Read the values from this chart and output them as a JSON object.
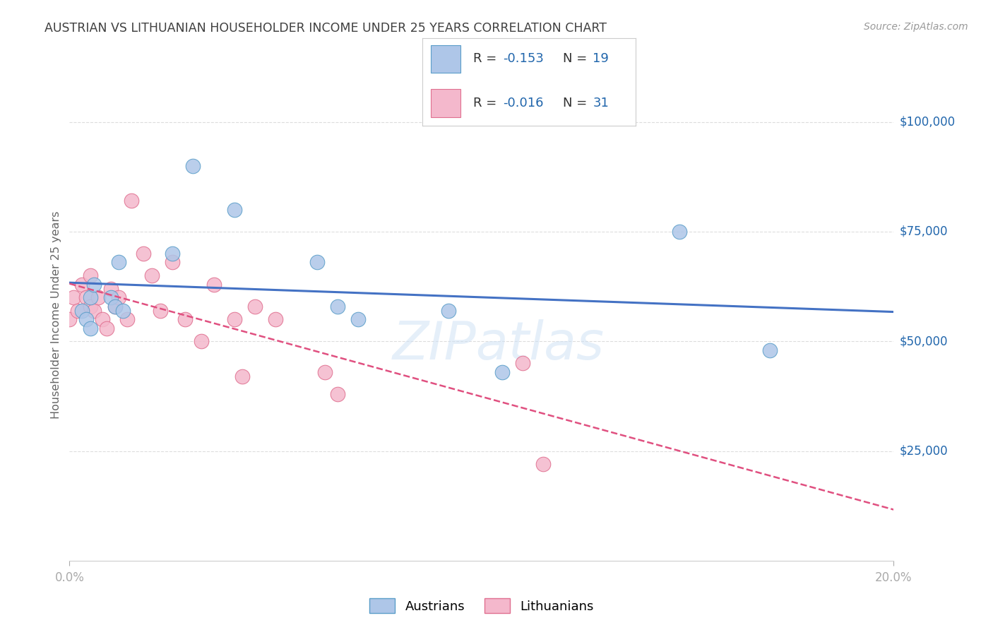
{
  "title": "AUSTRIAN VS LITHUANIAN HOUSEHOLDER INCOME UNDER 25 YEARS CORRELATION CHART",
  "source": "Source: ZipAtlas.com",
  "ylabel": "Householder Income Under 25 years",
  "ytick_values": [
    25000,
    50000,
    75000,
    100000
  ],
  "ytick_labels": [
    "$25,000",
    "$50,000",
    "$75,000",
    "$100,000"
  ],
  "ymin": 0,
  "ymax": 112000,
  "xmin": 0.0,
  "xmax": 0.2,
  "legend_r_blue": "-0.153",
  "legend_n_blue": "19",
  "legend_r_pink": "-0.016",
  "legend_n_pink": "31",
  "legend_label_blue": "Austrians",
  "legend_label_pink": "Lithuanians",
  "blue_scatter": "#aec6e8",
  "pink_scatter": "#f4b8cc",
  "blue_edge": "#5b9ec9",
  "pink_edge": "#e07090",
  "blue_line": "#4472c4",
  "pink_line": "#e05080",
  "axis_blue": "#2166ac",
  "title_color": "#404040",
  "source_color": "#999999",
  "grid_color": "#dddddd",
  "watermark": "ZIPatlas",
  "austrians_x": [
    0.003,
    0.004,
    0.005,
    0.005,
    0.006,
    0.01,
    0.011,
    0.012,
    0.013,
    0.025,
    0.03,
    0.04,
    0.06,
    0.065,
    0.07,
    0.092,
    0.105,
    0.148,
    0.17
  ],
  "austrians_y": [
    57000,
    55000,
    53000,
    60000,
    63000,
    60000,
    58000,
    68000,
    57000,
    70000,
    90000,
    80000,
    68000,
    58000,
    55000,
    57000,
    43000,
    75000,
    48000
  ],
  "lithuanians_x": [
    0.0,
    0.001,
    0.002,
    0.003,
    0.004,
    0.005,
    0.005,
    0.006,
    0.007,
    0.008,
    0.009,
    0.01,
    0.011,
    0.012,
    0.014,
    0.015,
    0.018,
    0.02,
    0.022,
    0.025,
    0.028,
    0.032,
    0.035,
    0.04,
    0.042,
    0.045,
    0.05,
    0.062,
    0.065,
    0.11,
    0.115
  ],
  "lithuanians_y": [
    55000,
    60000,
    57000,
    63000,
    60000,
    58000,
    65000,
    57000,
    60000,
    55000,
    53000,
    62000,
    58000,
    60000,
    55000,
    82000,
    70000,
    65000,
    57000,
    68000,
    55000,
    50000,
    63000,
    55000,
    42000,
    58000,
    55000,
    43000,
    38000,
    45000,
    22000
  ]
}
